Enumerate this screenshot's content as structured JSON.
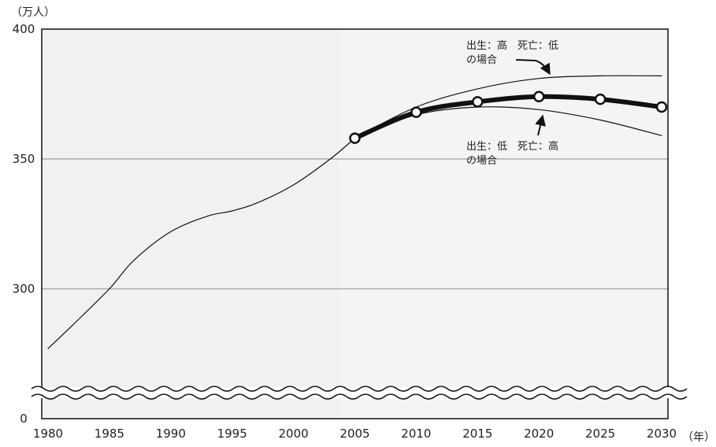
{
  "chart_data": {
    "type": "line",
    "y_unit": "（万人）",
    "x_unit": "（年）",
    "ylim": [
      270,
      400
    ],
    "yticks": [
      {
        "value": 400,
        "label": "400"
      },
      {
        "value": 350,
        "label": "350"
      },
      {
        "value": 300,
        "label": "300"
      }
    ],
    "y_break_label": "0",
    "xlim": [
      1980,
      2030
    ],
    "xticks": [
      1980,
      1985,
      1990,
      1995,
      2000,
      2005,
      2010,
      2015,
      2020,
      2025,
      2030
    ],
    "grid": true,
    "series": [
      {
        "name": "",
        "style": "thin",
        "x": [
          1980,
          1982,
          1985,
          1987,
          1990,
          1993,
          1995,
          1997,
          2000,
          2003,
          2005
        ],
        "y": [
          277,
          286,
          300,
          311,
          322,
          328,
          330,
          333,
          340,
          350,
          358
        ]
      },
      {
        "name": "",
        "style": "thick-markers",
        "x": [
          2005,
          2010,
          2015,
          2020,
          2025,
          2030
        ],
        "y": [
          358,
          368,
          372,
          374,
          373,
          370
        ]
      },
      {
        "name": "出生：高　死亡：低の場合",
        "style": "thin",
        "x": [
          2005,
          2010,
          2015,
          2020,
          2025,
          2030
        ],
        "y": [
          358,
          370,
          377,
          381,
          382,
          382
        ]
      },
      {
        "name": "出生：低　死亡：高の場合",
        "style": "thin",
        "x": [
          2005,
          2010,
          2015,
          2020,
          2025,
          2030
        ],
        "y": [
          358,
          367,
          370,
          369,
          365,
          359
        ]
      }
    ],
    "annotations": [
      {
        "line1": "出生：高　死亡：低",
        "line2": "の場合"
      },
      {
        "line1": "出生：低　死亡：高",
        "line2": "の場合"
      }
    ]
  }
}
